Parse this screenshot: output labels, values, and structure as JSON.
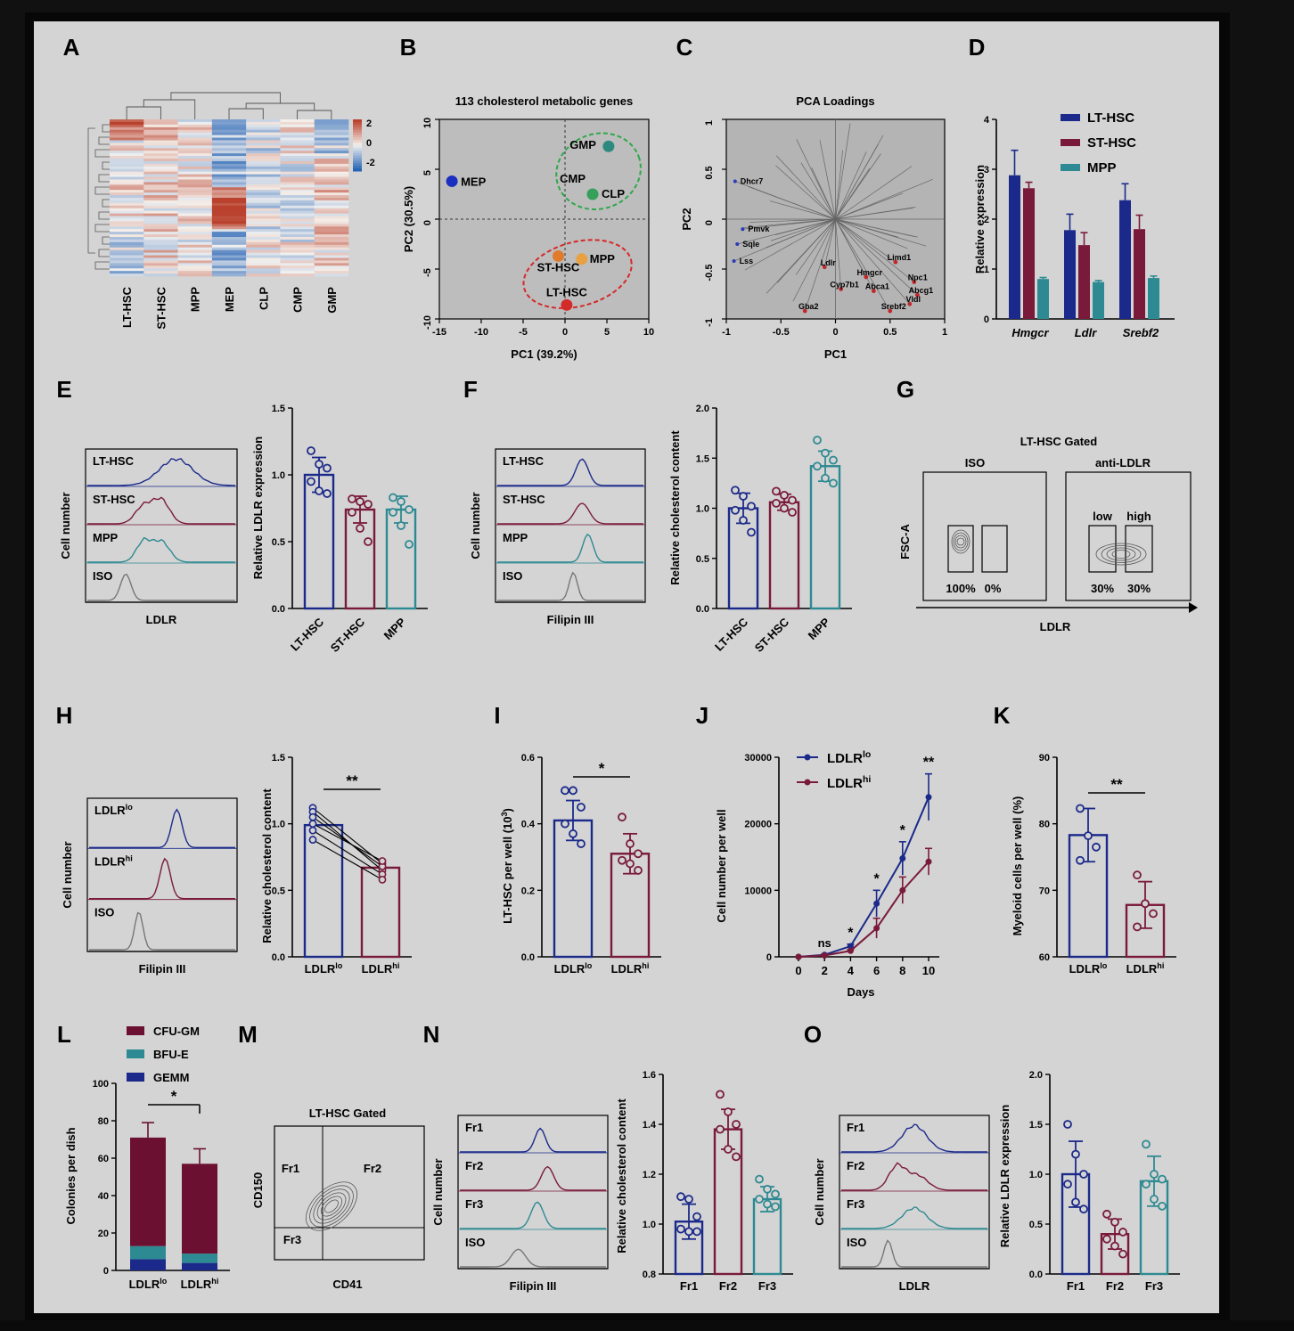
{
  "panel_letters": [
    "A",
    "B",
    "C",
    "D",
    "E",
    "F",
    "G",
    "H",
    "I",
    "J",
    "K",
    "L",
    "M",
    "N",
    "O"
  ],
  "colors": {
    "lt": "#1b2a8a",
    "st": "#7a1a3a",
    "mpp": "#2e8a92",
    "iso": "#777777",
    "clusterGreen": "#2fa84a",
    "clusterRed": "#d62828",
    "loadRed": "#c0282a",
    "loadBlue": "#2a3ab8",
    "mep": "#1a2fbf",
    "gmp": "#2e8a7f",
    "cmp": "#34a05a",
    "stHsc": "#e07b2c",
    "mppPt": "#e8a140",
    "ltHscPt": "#d32a2a",
    "gemm": "#1b2a8a",
    "bfue": "#2e8a92",
    "cfugm": "#6b1030"
  },
  "A": {
    "columns": [
      "LT-HSC",
      "ST-HSC",
      "MPP",
      "MEP",
      "CLP",
      "CMP",
      "GMP"
    ],
    "scale_ticks": [
      "2",
      "0",
      "-2"
    ]
  },
  "B": {
    "chart_data": {
      "type": "scatter",
      "title": "113 cholesterol metabolic genes",
      "xlabel": "PC1 (39.2%)",
      "ylabel": "PC2 (30.5%)",
      "xlim": [
        -15,
        10
      ],
      "ylim": [
        -10,
        10
      ],
      "xticks": [
        "-15",
        "-10",
        "-5",
        "0",
        "5",
        "10"
      ],
      "yticks": [
        "10",
        "5",
        "0",
        "-5",
        "-10"
      ],
      "points": [
        {
          "name": "MEP",
          "x": -13.5,
          "y": 3.8,
          "color": "mep"
        },
        {
          "name": "GMP",
          "x": 5.2,
          "y": 7.3,
          "color": "gmp"
        },
        {
          "name": "CMP",
          "x": 3.3,
          "y": 2.5,
          "color": "cmp"
        },
        {
          "name": "CLP",
          "x": 3.3,
          "y": 2.5,
          "color": "cmp"
        },
        {
          "name": "ST-HSC",
          "x": -0.8,
          "y": -3.7,
          "color": "stHsc"
        },
        {
          "name": "MPP",
          "x": 2.0,
          "y": -4.0,
          "color": "mppPt"
        },
        {
          "name": "LT-HSC",
          "x": 0.2,
          "y": -8.6,
          "color": "ltHscPt"
        }
      ]
    }
  },
  "C": {
    "chart_data": {
      "type": "scatter",
      "title": "PCA Loadings",
      "xlabel": "PC1",
      "ylabel": "PC2",
      "xlim": [
        -1,
        1
      ],
      "ylim": [
        -1,
        1
      ],
      "xticks": [
        "-1",
        "-0.5",
        "0",
        "0.5",
        "1"
      ],
      "yticks": [
        "1",
        "0.5",
        "0",
        "-0.5",
        "-1"
      ],
      "blue_genes": [
        {
          "name": "Dhcr7",
          "x": -0.92,
          "y": 0.38
        },
        {
          "name": "Pmvk",
          "x": -0.85,
          "y": -0.1
        },
        {
          "name": "Sqle",
          "x": -0.9,
          "y": -0.25
        },
        {
          "name": "Lss",
          "x": -0.93,
          "y": -0.42
        }
      ],
      "red_genes": [
        {
          "name": "Ldlr",
          "x": -0.1,
          "y": -0.48
        },
        {
          "name": "Hmgcr",
          "x": 0.28,
          "y": -0.58
        },
        {
          "name": "Limd1",
          "x": 0.55,
          "y": -0.43
        },
        {
          "name": "Npc1",
          "x": 0.72,
          "y": -0.63
        },
        {
          "name": "Abca1",
          "x": 0.35,
          "y": -0.72
        },
        {
          "name": "Abcg1",
          "x": 0.75,
          "y": -0.76
        },
        {
          "name": "Cyp7b1",
          "x": 0.05,
          "y": -0.7
        },
        {
          "name": "Vldl",
          "x": 0.68,
          "y": -0.85
        },
        {
          "name": "Srebf2",
          "x": 0.5,
          "y": -0.92
        },
        {
          "name": "Gba2",
          "x": -0.28,
          "y": -0.92
        }
      ]
    }
  },
  "D": {
    "chart_data": {
      "type": "bar",
      "ylabel": "Relative expression",
      "ylim": [
        0,
        4
      ],
      "yticks": [
        "0",
        "1",
        "2",
        "3",
        "4"
      ],
      "categories": [
        "Hmgcr",
        "Ldlr",
        "Srebf2"
      ],
      "series": [
        {
          "name": "LT-HSC",
          "values": [
            2.88,
            1.78,
            2.38
          ],
          "err": [
            0.5,
            0.32,
            0.33
          ],
          "color": "lt"
        },
        {
          "name": "ST-HSC",
          "values": [
            2.62,
            1.48,
            1.8
          ],
          "err": [
            0.12,
            0.25,
            0.28
          ],
          "color": "st"
        },
        {
          "name": "MPP",
          "values": [
            0.8,
            0.74,
            0.82
          ],
          "err": [
            0.03,
            0.03,
            0.04
          ],
          "color": "mpp"
        }
      ]
    }
  },
  "E": {
    "hist": {
      "xlabel": "LDLR",
      "ylabel": "Cell number",
      "labels": [
        "LT-HSC",
        "ST-HSC",
        "MPP",
        "ISO"
      ]
    },
    "chart_data": {
      "type": "bar",
      "ylabel": "Relative LDLR expression",
      "ylim": [
        0,
        1.5
      ],
      "yticks": [
        "0.0",
        "0.5",
        "1.0",
        "1.5"
      ],
      "categories": [
        "LT-HSC",
        "ST-HSC",
        "MPP"
      ],
      "values": [
        1.0,
        0.74,
        0.74
      ],
      "err": [
        0.13,
        0.1,
        0.1
      ],
      "points": [
        [
          1.18,
          1.08,
          1.05,
          0.95,
          0.88,
          0.86
        ],
        [
          0.82,
          0.8,
          0.78,
          0.72,
          0.6,
          0.5
        ],
        [
          0.83,
          0.8,
          0.74,
          0.72,
          0.62,
          0.48
        ]
      ],
      "colors": [
        "lt",
        "st",
        "mpp"
      ]
    }
  },
  "F": {
    "hist": {
      "xlabel": "Filipin III",
      "ylabel": "Cell number",
      "labels": [
        "LT-HSC",
        "ST-HSC",
        "MPP",
        "ISO"
      ]
    },
    "chart_data": {
      "type": "bar",
      "ylabel": "Relative cholesterol content",
      "ylim": [
        0,
        2.0
      ],
      "yticks": [
        "0.0",
        "0.5",
        "1.0",
        "1.5",
        "2.0"
      ],
      "categories": [
        "LT-HSC",
        "ST-HSC",
        "MPP"
      ],
      "values": [
        1.0,
        1.06,
        1.42
      ],
      "err": [
        0.15,
        0.08,
        0.15
      ],
      "points": [
        [
          1.18,
          1.12,
          1.02,
          0.98,
          0.88,
          0.76
        ],
        [
          1.17,
          1.13,
          1.08,
          1.05,
          1.0,
          0.96
        ],
        [
          1.68,
          1.55,
          1.48,
          1.42,
          1.3,
          1.25
        ]
      ],
      "colors": [
        "lt",
        "st",
        "mpp"
      ]
    }
  },
  "G": {
    "title": "LT-HSC Gated",
    "iso_label": "ISO",
    "anti_label": "anti-LDLR",
    "ylabel": "FSC-A",
    "xlabel": "LDLR",
    "iso_pcts": [
      "100%",
      "0%"
    ],
    "anti_gates": [
      "low",
      "high"
    ],
    "anti_pcts": [
      "30%",
      "30%"
    ]
  },
  "H": {
    "hist": {
      "xlabel": "Filipin III",
      "ylabel": "Cell number",
      "labels": [
        "LDLR",
        "LDLR",
        "ISO"
      ],
      "sups": [
        "lo",
        "hi",
        ""
      ]
    },
    "chart_data": {
      "type": "bar",
      "ylabel": "Relative cholesterol content",
      "ylim": [
        0,
        1.5
      ],
      "yticks": [
        "0.0",
        "0.5",
        "1.0",
        "1.5"
      ],
      "categories": [
        "LDLR",
        "LDLR"
      ],
      "sups": [
        "lo",
        "hi"
      ],
      "values": [
        0.99,
        0.67
      ],
      "pairs": [
        [
          1.12,
          0.7
        ],
        [
          1.09,
          0.65
        ],
        [
          1.05,
          0.68
        ],
        [
          1.0,
          0.72
        ],
        [
          0.95,
          0.62
        ],
        [
          0.88,
          0.58
        ]
      ],
      "colors": [
        "lt",
        "st"
      ],
      "sig": "**"
    }
  },
  "I": {
    "chart_data": {
      "type": "bar",
      "ylabel": "LT-HSC per well (10",
      "ylabel_sup": "3",
      "ylabel_end": ")",
      "ylim": [
        0,
        0.6
      ],
      "yticks": [
        "0.0",
        "0.2",
        "0.4",
        "0.6"
      ],
      "categories": [
        "LDLR",
        "LDLR"
      ],
      "sups": [
        "lo",
        "hi"
      ],
      "values": [
        0.41,
        0.31
      ],
      "err": [
        0.06,
        0.06
      ],
      "points": [
        [
          0.5,
          0.5,
          0.45,
          0.4,
          0.37,
          0.34
        ],
        [
          0.42,
          0.34,
          0.31,
          0.29,
          0.28,
          0.26
        ]
      ],
      "colors": [
        "lt",
        "st"
      ],
      "sig": "*"
    }
  },
  "J": {
    "chart_data": {
      "type": "line",
      "xlabel": "Days",
      "ylabel": "Cell number per well",
      "ylim": [
        0,
        30000
      ],
      "yticks": [
        "0",
        "10000",
        "20000",
        "30000"
      ],
      "x": [
        0,
        2,
        4,
        6,
        8,
        10
      ],
      "xticks": [
        "0",
        "2",
        "4",
        "6",
        "8",
        "10"
      ],
      "series": [
        {
          "name": "LDLR",
          "sup": "lo",
          "values": [
            0,
            300,
            1600,
            8000,
            14800,
            24000
          ],
          "err": [
            0,
            100,
            300,
            2000,
            2500,
            3500
          ],
          "color": "lt"
        },
        {
          "name": "LDLR",
          "sup": "hi",
          "values": [
            0,
            200,
            900,
            4300,
            10000,
            14300
          ],
          "err": [
            0,
            100,
            200,
            1500,
            2000,
            2000
          ],
          "color": "st"
        }
      ],
      "annotations": [
        {
          "x": 2,
          "text": "ns"
        },
        {
          "x": 4,
          "text": "*"
        },
        {
          "x": 6,
          "text": "*"
        },
        {
          "x": 8,
          "text": "*"
        },
        {
          "x": 10,
          "text": "**"
        }
      ]
    }
  },
  "K": {
    "chart_data": {
      "type": "bar",
      "ylabel": "Myeloid cells per well (%)",
      "ylim": [
        60,
        90
      ],
      "yticks": [
        "60",
        "70",
        "80",
        "90"
      ],
      "categories": [
        "LDLR",
        "LDLR"
      ],
      "sups": [
        "lo",
        "hi"
      ],
      "values": [
        78.3,
        67.8
      ],
      "err": [
        4.0,
        3.5
      ],
      "points": [
        [
          82.3,
          78.2,
          76.5,
          74.5
        ],
        [
          72.3,
          68.0,
          66.5,
          64.5
        ]
      ],
      "colors": [
        "lt",
        "st"
      ],
      "sig": "**"
    }
  },
  "L": {
    "chart_data": {
      "type": "bar",
      "ylabel": "Colonies per dish",
      "ylim": [
        0,
        100
      ],
      "yticks": [
        "0",
        "20",
        "40",
        "60",
        "80",
        "100"
      ],
      "categories": [
        "LDLR",
        "LDLR"
      ],
      "sups": [
        "lo",
        "hi"
      ],
      "series": [
        {
          "name": "GEMM",
          "values": [
            6,
            4
          ],
          "color": "gemm"
        },
        {
          "name": "BFU-E",
          "values": [
            7,
            5
          ],
          "color": "bfue"
        },
        {
          "name": "CFU-GM",
          "values": [
            58,
            48
          ],
          "color": "cfugm"
        }
      ],
      "legend_order": [
        "CFU-GM",
        "BFU-E",
        "GEMM"
      ],
      "totals_err": [
        8,
        8
      ],
      "sig": "*"
    }
  },
  "M": {
    "title": "LT-HSC Gated",
    "ylabel": "CD150",
    "xlabel": "CD41",
    "quadrants": [
      "Fr1",
      "Fr2",
      "Fr3"
    ]
  },
  "N": {
    "hist": {
      "xlabel": "Filipin III",
      "ylabel": "Cell number",
      "labels": [
        "Fr1",
        "Fr2",
        "Fr3",
        "ISO"
      ]
    },
    "chart_data": {
      "type": "bar",
      "ylabel": "Relative cholesterol content",
      "ylim": [
        0.8,
        1.6
      ],
      "yticks": [
        "0.8",
        "1.0",
        "1.2",
        "1.4",
        "1.6"
      ],
      "categories": [
        "Fr1",
        "Fr2",
        "Fr3"
      ],
      "values": [
        1.01,
        1.38,
        1.1
      ],
      "err": [
        0.07,
        0.08,
        0.05
      ],
      "points": [
        [
          1.11,
          1.1,
          1.03,
          0.98,
          0.97,
          0.97
        ],
        [
          1.52,
          1.45,
          1.4,
          1.38,
          1.3,
          1.27
        ],
        [
          1.18,
          1.14,
          1.12,
          1.1,
          1.08,
          1.07
        ]
      ],
      "colors": [
        "lt",
        "st",
        "mpp"
      ]
    }
  },
  "O": {
    "hist": {
      "xlabel": "LDLR",
      "ylabel": "Cell number",
      "labels": [
        "Fr1",
        "Fr2",
        "Fr3",
        "ISO"
      ]
    },
    "chart_data": {
      "type": "bar",
      "ylabel": "Relative LDLR expression",
      "ylim": [
        0,
        2.0
      ],
      "yticks": [
        "0.0",
        "0.5",
        "1.0",
        "1.5",
        "2.0"
      ],
      "categories": [
        "Fr1",
        "Fr2",
        "Fr3"
      ],
      "values": [
        1.0,
        0.4,
        0.93
      ],
      "err": [
        0.33,
        0.15,
        0.25
      ],
      "points": [
        [
          1.5,
          1.2,
          1.0,
          0.9,
          0.72,
          0.65
        ],
        [
          0.6,
          0.52,
          0.42,
          0.35,
          0.28,
          0.2
        ],
        [
          1.3,
          1.0,
          0.95,
          0.9,
          0.75,
          0.68
        ]
      ],
      "colors": [
        "lt",
        "st",
        "mpp"
      ]
    }
  }
}
